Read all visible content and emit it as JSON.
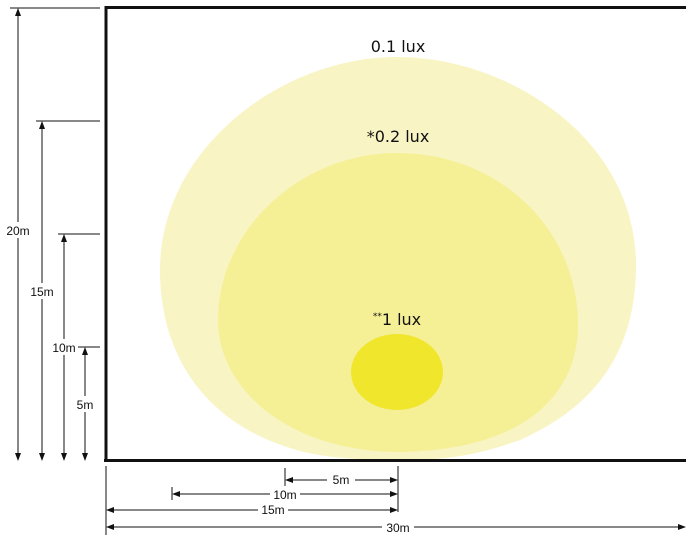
{
  "colors": {
    "zone_0_1": "#f8f4c4",
    "zone_0_2": "#f5f096",
    "zone_1": "#f0e62c",
    "lines": "#111111",
    "background": "#ffffff"
  },
  "zones": {
    "outer": {
      "label": "0.1 lux",
      "prefix": ""
    },
    "middle": {
      "label": "0.2 lux",
      "prefix": "*"
    },
    "inner": {
      "label": "1 lux",
      "prefix": "**"
    }
  },
  "vertical_dimensions": {
    "d20": "20m",
    "d15": "15m",
    "d10": "10m",
    "d5": "5m"
  },
  "horizontal_dimensions": {
    "d5": "5m",
    "d10": "10m",
    "d15": "15m",
    "d30": "30m"
  }
}
